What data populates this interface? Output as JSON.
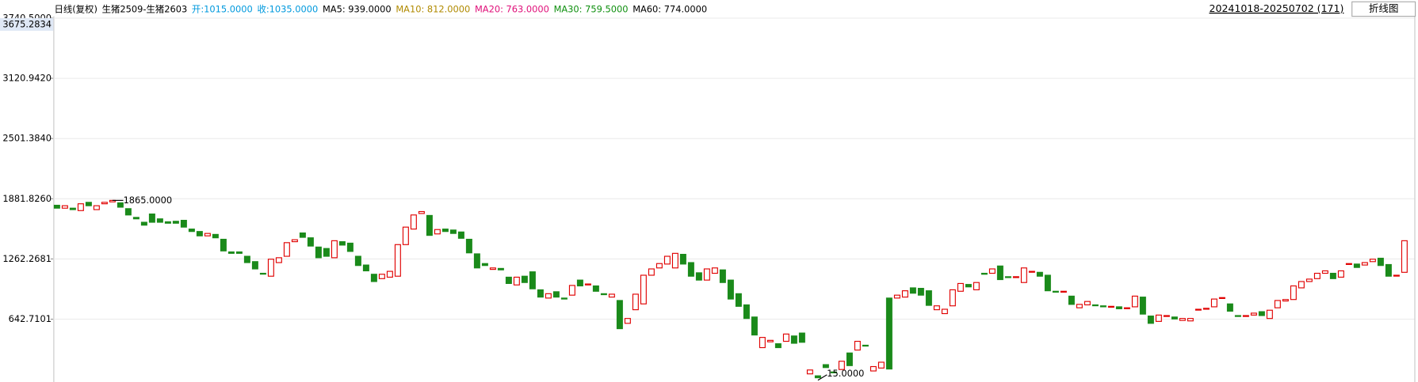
{
  "chart_data": {
    "type": "candlestick",
    "header": [
      {
        "text": "日线(复权)",
        "color": "#000000"
      },
      {
        "text": "生猪2509-生猪2603",
        "color": "#000000"
      },
      {
        "text": "开:1015.0000",
        "color": "#0099dd"
      },
      {
        "text": "收:1035.0000",
        "color": "#0099dd"
      },
      {
        "text": "MA5: 939.0000",
        "color": "#000000"
      },
      {
        "text": "MA10: 812.0000",
        "color": "#b08a00"
      },
      {
        "text": "MA20: 763.0000",
        "color": "#e0107a"
      },
      {
        "text": "MA30: 759.5000",
        "color": "#109010"
      },
      {
        "text": "MA60: 774.0000",
        "color": "#000000"
      }
    ],
    "date_range": "20241018-20250702 (171)",
    "button": "折线图",
    "up_color": "#e00000",
    "down_color": "#1a8a1a",
    "ylim": [
      15,
      3740.5
    ],
    "yticks": [
      {
        "value": 642.7101,
        "label": "642.7101"
      },
      {
        "value": 1262.2681,
        "label": "1262.2681"
      },
      {
        "value": 1881.826,
        "label": "1881.8260"
      },
      {
        "value": 2501.384,
        "label": "2501.3840"
      },
      {
        "value": 3120.942,
        "label": "3120.9420"
      },
      {
        "value": 3740.5,
        "label": "3740.5000"
      }
    ],
    "grid": true,
    "crosshair": {
      "value": 3675.2834,
      "label": "3675.2834"
    },
    "high_annotation": {
      "index": 7,
      "value": 1865,
      "label": "1865.0000"
    },
    "low_annotation": {
      "index": 96,
      "value": 15,
      "label": "15.0000"
    },
    "open": [
      1815,
      1785,
      1785,
      1760,
      1845,
      1770,
      1830,
      1850,
      1840,
      1780,
      1690,
      1640,
      1725,
      1675,
      1645,
      1650,
      1660,
      1570,
      1545,
      1500,
      1515,
      1465,
      1335,
      1335,
      1290,
      1235,
      1115,
      1085,
      1225,
      1290,
      1440,
      1530,
      1480,
      1385,
      1370,
      1275,
      1440,
      1425,
      1290,
      1200,
      1105,
      1060,
      1075,
      1085,
      1410,
      1570,
      1730,
      1710,
      1520,
      1570,
      1560,
      1540,
      1465,
      1315,
      1215,
      1155,
      1165,
      1075,
      995,
      1085,
      1130,
      945,
      860,
      925,
      860,
      890,
      1045,
      995,
      985,
      905,
      870,
      835,
      600,
      740,
      800,
      1095,
      1170,
      1210,
      1170,
      1310,
      1225,
      1120,
      1045,
      1115,
      1150,
      1045,
      905,
      790,
      665,
      350,
      410,
      390,
      415,
      470,
      500,
      80,
      60,
      175,
      100,
      125,
      295,
      325,
      375,
      110,
      140,
      860,
      860,
      870,
      965,
      960,
      935,
      740,
      700,
      780,
      930,
      1000,
      945,
      1115,
      1115,
      1190,
      1080,
      1075,
      1020,
      1130,
      1125,
      1095,
      930,
      925,
      880,
      760,
      790,
      790,
      780,
      770,
      770,
      755,
      770,
      870,
      675,
      620,
      675,
      665,
      630,
      625,
      740,
      745,
      770,
      860,
      800,
      680,
      675,
      685,
      720,
      650,
      760,
      830,
      845,
      965,
      1030,
      1060,
      1115,
      1115,
      1075,
      1210,
      1210,
      1200,
      1235,
      1270,
      1205,
      1090,
      1125
    ],
    "close": [
      1785,
      1810,
      1770,
      1830,
      1810,
      1810,
      1845,
      1865,
      1795,
      1715,
      1675,
      1610,
      1640,
      1640,
      1630,
      1630,
      1590,
      1545,
      1500,
      1525,
      1480,
      1345,
      1320,
      1320,
      1225,
      1160,
      1110,
      1260,
      1275,
      1430,
      1460,
      1485,
      1395,
      1275,
      1290,
      1450,
      1405,
      1340,
      1195,
      1140,
      1030,
      1105,
      1135,
      1410,
      1590,
      1715,
      1750,
      1505,
      1565,
      1545,
      1525,
      1475,
      1325,
      1170,
      1195,
      1170,
      1150,
      1010,
      1075,
      1020,
      955,
      870,
      905,
      870,
      850,
      990,
      985,
      1005,
      930,
      895,
      900,
      545,
      650,
      900,
      1095,
      1160,
      1215,
      1290,
      1320,
      1210,
      1085,
      1045,
      1160,
      1170,
      1020,
      850,
      775,
      650,
      480,
      455,
      425,
      350,
      490,
      395,
      405,
      120,
      40,
      145,
      95,
      210,
      165,
      415,
      370,
      155,
      200,
      130,
      890,
      935,
      910,
      890,
      785,
      780,
      745,
      945,
      1010,
      975,
      1020,
      1105,
      1160,
      1050,
      1075,
      1080,
      1170,
      1135,
      1085,
      935,
      925,
      930,
      795,
      795,
      825,
      785,
      770,
      775,
      750,
      760,
      880,
      695,
      600,
      685,
      680,
      645,
      650,
      650,
      745,
      755,
      850,
      865,
      725,
      675,
      680,
      705,
      680,
      735,
      835,
      845,
      985,
      1030,
      1055,
      1115,
      1140,
      1060,
      1140,
      1215,
      1175,
      1225,
      1260,
      1195,
      1085,
      1095,
      1450
    ]
  }
}
